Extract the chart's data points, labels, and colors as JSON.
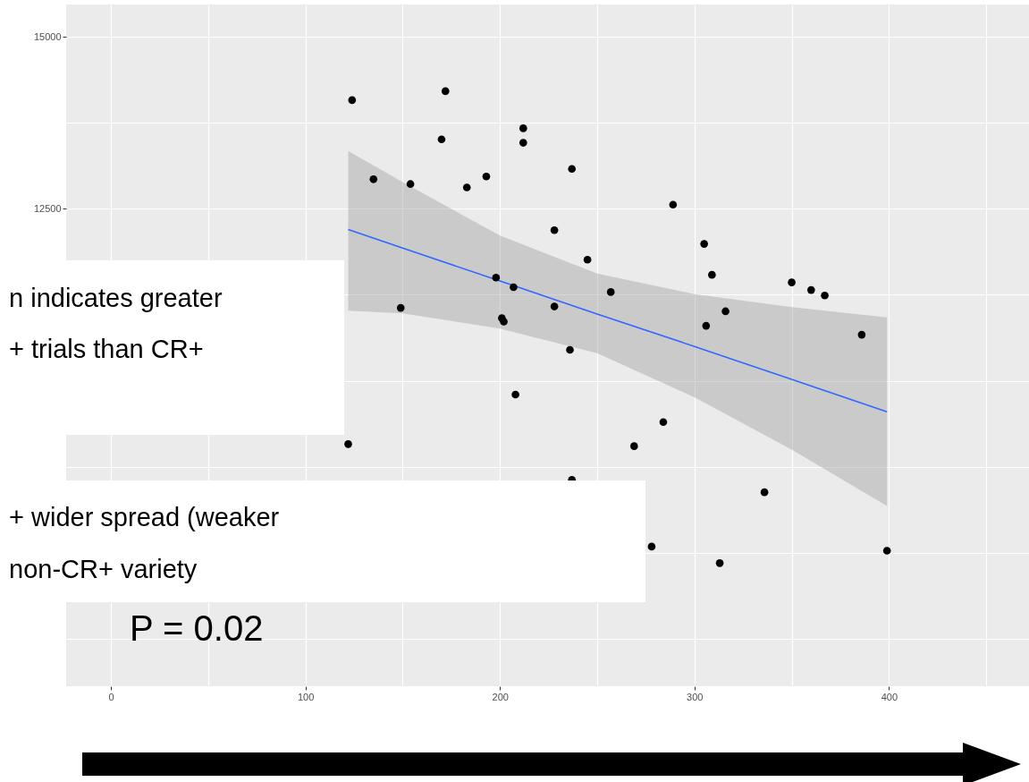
{
  "chart_data": {
    "type": "scatter",
    "xlim": [
      -23,
      472
    ],
    "ylim": [
      5560,
      15470
    ],
    "xticks": [
      0,
      {
        "value": 50,
        "label": null
      },
      100,
      {
        "value": 150,
        "label": null
      },
      200,
      {
        "value": 250,
        "label": null
      },
      300,
      {
        "value": 350,
        "label": null
      },
      400,
      {
        "value": 450,
        "label": null
      }
    ],
    "yticks": [
      {
        "value": 6250,
        "label": null
      },
      {
        "value": 7500,
        "label": null
      },
      {
        "value": 8750,
        "label": null
      },
      {
        "value": 10000,
        "label": null
      },
      {
        "value": 11250,
        "label": null
      },
      12500,
      {
        "value": 13750,
        "label": null
      },
      15000
    ],
    "grid": true,
    "series": [
      {
        "color": "#000000",
        "marker": "circle",
        "x": [
          124,
          172,
          170,
          135,
          154,
          183,
          193,
          212,
          212,
          237,
          228,
          245,
          289,
          305,
          309,
          350,
          360,
          367,
          198,
          207,
          228,
          257,
          201,
          202,
          306,
          316,
          386,
          236,
          149,
          208,
          122,
          284,
          269,
          237,
          278,
          313,
          336,
          399
        ],
        "values": [
          14080,
          14210,
          13510,
          12930,
          12860,
          12810,
          12970,
          13670,
          13460,
          13080,
          12190,
          11760,
          12560,
          11990,
          11540,
          11430,
          11320,
          11240,
          11500,
          11360,
          11080,
          11290,
          10910,
          10860,
          10800,
          11010,
          10670,
          10450,
          11060,
          9800,
          9080,
          9400,
          9050,
          8560,
          7590,
          7350,
          8380,
          7530
        ]
      },
      {
        "type": "line",
        "color": "#3366ff",
        "marker": "none",
        "line_style": "solid",
        "x": [
          122,
          150,
          200,
          250,
          300,
          350,
          399
        ],
        "values": [
          12200,
          11930,
          11450,
          10970,
          10500,
          10020,
          9550
        ],
        "lower": [
          11020,
          10980,
          10760,
          10400,
          9760,
          9000,
          8180
        ],
        "upper": [
          13340,
          12890,
          12110,
          11560,
          11260,
          11070,
          10920
        ]
      }
    ],
    "annotations": [
      "n indicates greater\n+ trials than CR+",
      "+ wider spread (weaker\nnon-CR+ variety",
      "P = 0.02"
    ]
  }
}
